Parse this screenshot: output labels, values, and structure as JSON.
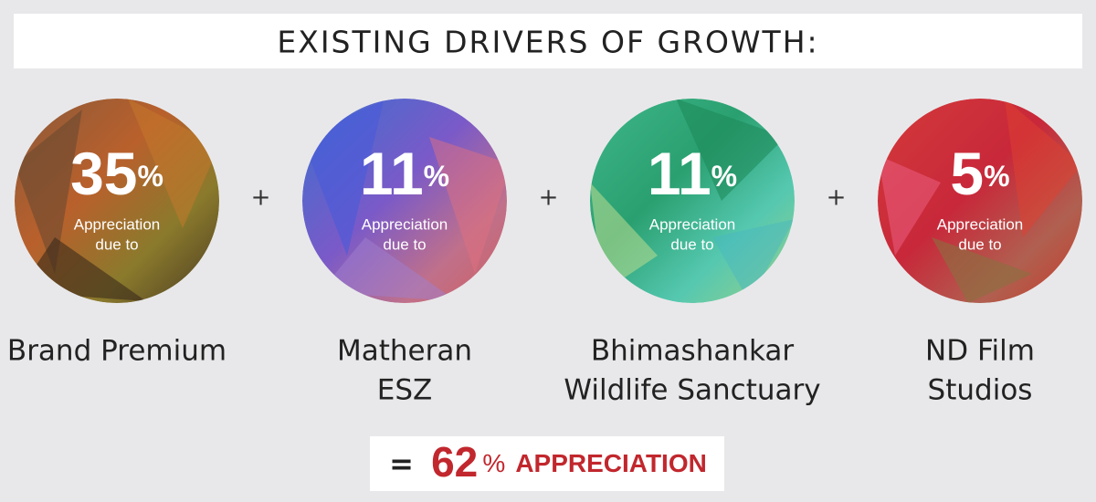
{
  "title": "EXISTING DRIVERS OF GROWTH:",
  "drivers": [
    {
      "value": "35",
      "unit": "%",
      "caption": [
        "Appreciation",
        "due to"
      ],
      "name": [
        "Brand Premium"
      ]
    },
    {
      "value": "11",
      "unit": "%",
      "caption": [
        "Appreciation",
        "due to"
      ],
      "name": [
        "Matheran",
        "ESZ"
      ]
    },
    {
      "value": "11",
      "unit": "%",
      "caption": [
        "Appreciation",
        "due to"
      ],
      "name": [
        "Bhimashankar",
        "Wildlife Sanctuary"
      ]
    },
    {
      "value": "5",
      "unit": "%",
      "caption": [
        "Appreciation",
        "due to"
      ],
      "name": [
        "ND Film",
        "Studios"
      ]
    }
  ],
  "operators": [
    "+",
    "+",
    "+"
  ],
  "total": {
    "equals": "=",
    "value": "62",
    "unit": "%",
    "label": "APPRECIATION"
  }
}
